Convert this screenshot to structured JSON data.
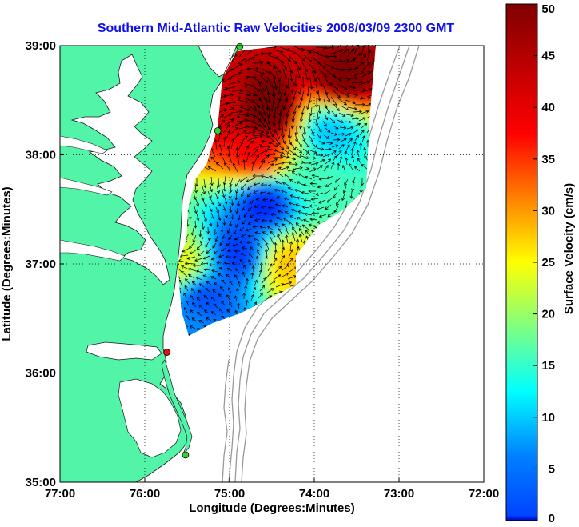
{
  "title": "Southern Mid-Atlantic Raw Velocities 2008/03/09 2300 GMT",
  "xlabel": "Longitude (Degrees:Minutes)",
  "ylabel": "Latitude (Degrees:Minutes)",
  "colorbar_label": "Surface Velocity (cm/s)",
  "x_ticks": [
    "77:00",
    "76:00",
    "75:00",
    "74:00",
    "73:00",
    "72:00"
  ],
  "y_ticks": [
    "39:00",
    "38:00",
    "37:00",
    "36:00",
    "35:00"
  ],
  "colorbar_ticks": [
    "50",
    "45",
    "40",
    "35",
    "30",
    "25",
    "20",
    "15",
    "10",
    "5",
    "0"
  ],
  "lon_range": [
    -77,
    -72
  ],
  "lat_range": [
    35,
    39
  ],
  "colorbar_range": [
    0,
    50
  ],
  "colors": {
    "title": "#1010e8",
    "land": "#52f5a8",
    "water": "#ffffff",
    "bathymetry": "#999999",
    "grid": "#000000",
    "arrows": "#000000",
    "site_green": "#2fd52f",
    "site_red": "#e81010"
  },
  "colormap": "jet",
  "gridlines": "dotted",
  "stations": [
    {
      "lon": -74.88,
      "lat": 38.99,
      "status": "green"
    },
    {
      "lon": -75.14,
      "lat": 38.22,
      "status": "green"
    },
    {
      "lon": -75.74,
      "lat": 36.19,
      "status": "red"
    },
    {
      "lon": -75.52,
      "lat": 35.25,
      "status": "green"
    }
  ],
  "velocity_field": {
    "hotspots": [
      {
        "lon": -74.55,
        "lat": 38.4,
        "speed": 52
      },
      {
        "lon": -73.65,
        "lat": 38.7,
        "speed": 50
      },
      {
        "lon": -75.1,
        "lat": 38.45,
        "speed": 46
      },
      {
        "lon": -74.7,
        "lat": 38.0,
        "speed": 44
      },
      {
        "lon": -74.6,
        "lat": 37.55,
        "speed": 8
      },
      {
        "lon": -74.9,
        "lat": 37.1,
        "speed": 9
      },
      {
        "lon": -75.3,
        "lat": 36.7,
        "speed": 10
      },
      {
        "lon": -75.45,
        "lat": 36.4,
        "speed": 13
      },
      {
        "lon": -73.95,
        "lat": 37.8,
        "speed": 22
      },
      {
        "lon": -74.3,
        "lat": 37.0,
        "speed": 34
      },
      {
        "lon": -75.55,
        "lat": 37.0,
        "speed": 30
      },
      {
        "lon": -73.8,
        "lat": 38.2,
        "speed": 16
      }
    ]
  }
}
